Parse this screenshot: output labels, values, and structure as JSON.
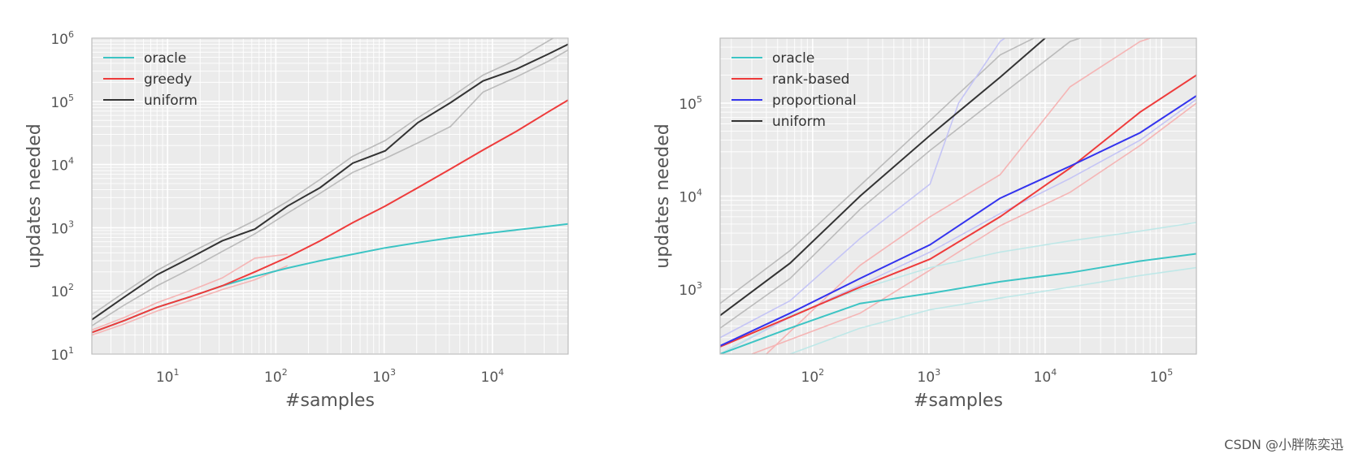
{
  "watermark": "CSDN @小胖陈奕迅",
  "chart_data": [
    {
      "type": "line",
      "scale": {
        "x": "log",
        "y": "log"
      },
      "xlabel": "#samples",
      "ylabel": "updates needed",
      "xlim": [
        2,
        50000
      ],
      "ylim": [
        10,
        1000000
      ],
      "xticks": [
        {
          "base": "10",
          "exp": "1",
          "value": 10
        },
        {
          "base": "10",
          "exp": "2",
          "value": 100
        },
        {
          "base": "10",
          "exp": "3",
          "value": 1000
        },
        {
          "base": "10",
          "exp": "4",
          "value": 10000
        }
      ],
      "yticks": [
        {
          "base": "10",
          "exp": "1",
          "value": 10
        },
        {
          "base": "10",
          "exp": "2",
          "value": 100
        },
        {
          "base": "10",
          "exp": "3",
          "value": 1000
        },
        {
          "base": "10",
          "exp": "4",
          "value": 10000
        },
        {
          "base": "10",
          "exp": "5",
          "value": 100000
        },
        {
          "base": "10",
          "exp": "6",
          "value": 1000000
        }
      ],
      "grid": true,
      "legend_position": "top-left",
      "series": [
        {
          "name": "oracle",
          "color": "#3cc4c4",
          "x": [
            2,
            4,
            8,
            16,
            32,
            64,
            128,
            256,
            512,
            1024,
            2048,
            4096,
            8192,
            16384,
            32768,
            50000
          ],
          "y": [
            22,
            34,
            55,
            80,
            120,
            170,
            230,
            300,
            380,
            480,
            580,
            690,
            800,
            920,
            1050,
            1150
          ]
        },
        {
          "name": "greedy",
          "color": "#ee3b3b",
          "x": [
            2,
            4,
            8,
            16,
            32,
            64,
            128,
            256,
            512,
            1024,
            2048,
            4096,
            8192,
            16384,
            32768,
            50000
          ],
          "y": [
            22,
            34,
            55,
            80,
            120,
            200,
            340,
            620,
            1200,
            2200,
            4300,
            8500,
            17000,
            33000,
            68000,
            105000
          ]
        },
        {
          "name": "uniform",
          "color": "#333333",
          "x": [
            2,
            4,
            8,
            16,
            32,
            64,
            128,
            256,
            512,
            1024,
            2048,
            4096,
            8192,
            16384,
            32768,
            50000
          ],
          "y": [
            35,
            80,
            180,
            330,
            620,
            950,
            2200,
            4300,
            10500,
            16500,
            46000,
            95000,
            210000,
            320000,
            560000,
            800000
          ]
        }
      ],
      "bands": [
        {
          "color": "#bbbbbb",
          "x": [
            2,
            4,
            8,
            16,
            32,
            64,
            128,
            256,
            512,
            1024,
            2048,
            4096,
            8192,
            16384,
            32768,
            50000
          ],
          "y": [
            42,
            95,
            210,
            400,
            720,
            1300,
            2600,
            5800,
            13500,
            24000,
            55000,
            115000,
            260000,
            450000,
            900000,
            1400000
          ]
        },
        {
          "color": "#bbbbbb",
          "x": [
            2,
            4,
            8,
            16,
            32,
            64,
            128,
            256,
            512,
            1024,
            2048,
            4096,
            8192,
            16384,
            32768,
            50000
          ],
          "y": [
            28,
            60,
            120,
            220,
            420,
            800,
            1700,
            3500,
            7500,
            12500,
            22000,
            40000,
            140000,
            240000,
            430000,
            650000
          ]
        },
        {
          "color": "#f5b5b5",
          "x": [
            2,
            4,
            8,
            16,
            32,
            64,
            128
          ],
          "y": [
            24,
            38,
            65,
            100,
            160,
            330,
            380
          ]
        },
        {
          "color": "#f5b5b5",
          "x": [
            2,
            4,
            8,
            16,
            32,
            64,
            128
          ],
          "y": [
            20,
            30,
            48,
            70,
            105,
            150,
            250
          ]
        }
      ],
      "legend": [
        {
          "label": "oracle",
          "color": "#3cc4c4"
        },
        {
          "label": "greedy",
          "color": "#ee3b3b"
        },
        {
          "label": "uniform",
          "color": "#333333"
        }
      ]
    },
    {
      "type": "line",
      "scale": {
        "x": "log",
        "y": "log"
      },
      "xlabel": "#samples",
      "ylabel": "updates needed",
      "xlim": [
        16,
        200000
      ],
      "ylim": [
        200,
        500000
      ],
      "xticks": [
        {
          "base": "10",
          "exp": "2",
          "value": 100
        },
        {
          "base": "10",
          "exp": "3",
          "value": 1000
        },
        {
          "base": "10",
          "exp": "4",
          "value": 10000
        },
        {
          "base": "10",
          "exp": "5",
          "value": 100000
        }
      ],
      "yticks": [
        {
          "base": "10",
          "exp": "3",
          "value": 1000
        },
        {
          "base": "10",
          "exp": "4",
          "value": 10000
        },
        {
          "base": "10",
          "exp": "5",
          "value": 100000
        }
      ],
      "grid": true,
      "legend_position": "top-left",
      "series": [
        {
          "name": "oracle",
          "color": "#3cc4c4",
          "x": [
            16,
            64,
            256,
            1024,
            4096,
            16384,
            65536,
            200000
          ],
          "y": [
            200,
            380,
            700,
            900,
            1200,
            1500,
            2000,
            2400
          ]
        },
        {
          "name": "rank-based",
          "color": "#ee3b3b",
          "x": [
            16,
            64,
            256,
            1024,
            4096,
            16384,
            65536,
            200000
          ],
          "y": [
            240,
            500,
            1050,
            2100,
            6000,
            20000,
            80000,
            200000
          ]
        },
        {
          "name": "proportional",
          "color": "#3333ee",
          "x": [
            16,
            64,
            256,
            1024,
            4096,
            16384,
            65536,
            200000
          ],
          "y": [
            245,
            550,
            1300,
            3000,
            9500,
            21000,
            48000,
            120000
          ]
        },
        {
          "name": "uniform",
          "color": "#333333",
          "x": [
            16,
            64,
            256,
            1024,
            4096,
            10000
          ],
          "y": [
            520,
            1900,
            10000,
            45000,
            190000,
            500000
          ]
        }
      ],
      "bands": [
        {
          "color": "#bbbbbb",
          "x": [
            16,
            64,
            256,
            1024,
            4096,
            8000
          ],
          "y": [
            700,
            2600,
            13000,
            65000,
            330000,
            500000
          ]
        },
        {
          "color": "#bbbbbb",
          "x": [
            16,
            64,
            256,
            1024,
            4096,
            16384,
            20000
          ],
          "y": [
            380,
            1300,
            7200,
            31000,
            120000,
            460000,
            500000
          ]
        },
        {
          "color": "#c5c5f5",
          "x": [
            16,
            64,
            256,
            1024,
            1800,
            4096,
            4500
          ],
          "y": [
            300,
            750,
            3500,
            13500,
            100000,
            460000,
            500000
          ]
        },
        {
          "color": "#c5c5f5",
          "x": [
            16,
            64,
            256,
            1024,
            4096,
            16384,
            65536,
            200000
          ],
          "y": [
            200,
            500,
            1100,
            2500,
            6500,
            15500,
            40000,
            110000
          ]
        },
        {
          "color": "#f5b5b5",
          "x": [
            40,
            256,
            1024,
            4096,
            16384,
            65536,
            80000
          ],
          "y": [
            200,
            1800,
            6000,
            17000,
            150000,
            460000,
            500000
          ]
        },
        {
          "color": "#f5b5b5",
          "x": [
            30,
            256,
            1024,
            4096,
            16384,
            65536,
            200000
          ],
          "y": [
            200,
            550,
            1600,
            4800,
            11000,
            35000,
            100000
          ]
        },
        {
          "color": "#bfe8e8",
          "x": [
            16,
            64,
            256,
            1024,
            4096,
            16384,
            65536,
            200000
          ],
          "y": [
            200,
            520,
            1000,
            1700,
            2500,
            3300,
            4200,
            5200
          ]
        },
        {
          "color": "#bfe8e8",
          "x": [
            64,
            256,
            1024,
            4096,
            16384,
            65536,
            200000
          ],
          "y": [
            200,
            380,
            600,
            800,
            1050,
            1400,
            1700
          ]
        }
      ],
      "legend": [
        {
          "label": "oracle",
          "color": "#3cc4c4"
        },
        {
          "label": "rank-based",
          "color": "#ee3b3b"
        },
        {
          "label": "proportional",
          "color": "#3333ee"
        },
        {
          "label": "uniform",
          "color": "#333333"
        }
      ]
    }
  ]
}
